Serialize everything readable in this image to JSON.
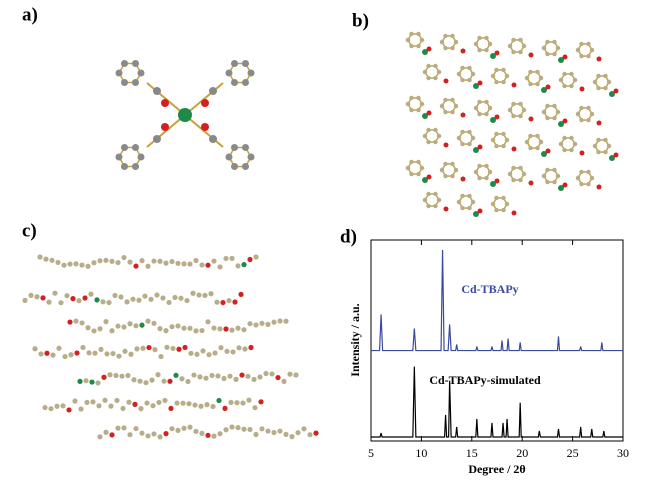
{
  "panels": {
    "a": "a)",
    "b": "b)",
    "c": "c)",
    "d": "d)"
  },
  "chart_data": {
    "type": "line",
    "xlabel": "Degree / 2θ",
    "ylabel": "Intensity / a.u.",
    "xlim": [
      5,
      30
    ],
    "xticks": [
      5,
      10,
      15,
      20,
      25,
      30
    ],
    "ylim": [
      0,
      100
    ],
    "series": [
      {
        "name": "Cd-TBAPy",
        "color": "#3a4a9c",
        "x": [
          5,
          5.85,
          6.0,
          6.15,
          9.15,
          9.3,
          9.45,
          11.95,
          12.1,
          12.25,
          12.65,
          12.8,
          12.95,
          13.4,
          13.5,
          13.6,
          15.4,
          15.5,
          15.6,
          16.9,
          17,
          17.1,
          17.9,
          18,
          18.1,
          18.5,
          18.6,
          18.7,
          19.7,
          19.8,
          19.9,
          23.5,
          23.6,
          23.7,
          25.7,
          25.8,
          25.9,
          27.8,
          27.9,
          28.0,
          30
        ],
        "values": [
          45,
          45,
          63,
          45,
          45,
          56,
          45,
          45,
          95,
          45,
          45,
          58,
          45,
          45,
          48,
          45,
          45,
          47,
          45,
          45,
          47,
          45,
          45,
          50,
          45,
          45,
          51,
          45,
          45,
          49,
          45,
          45,
          52,
          45,
          45,
          47,
          45,
          45,
          49,
          45,
          45
        ]
      },
      {
        "name": "Cd-TBAPy-simulated",
        "color": "#000000",
        "x": [
          5,
          5.9,
          6.0,
          6.1,
          9.15,
          9.3,
          9.45,
          12.3,
          12.4,
          12.5,
          12.7,
          12.8,
          12.95,
          13.4,
          13.5,
          13.6,
          15.4,
          15.5,
          15.6,
          16.9,
          17,
          17.1,
          18.0,
          18.1,
          18.2,
          18.4,
          18.5,
          18.6,
          19.7,
          19.8,
          19.9,
          21.6,
          21.7,
          21.8,
          23.5,
          23.6,
          23.7,
          25.7,
          25.8,
          25.9,
          26.8,
          26.9,
          27.0,
          28.0,
          28.1,
          28.2,
          30
        ],
        "values": [
          2,
          2,
          4,
          2,
          2,
          37,
          2,
          2,
          13,
          2,
          2,
          30,
          2,
          2,
          7,
          2,
          2,
          11,
          2,
          2,
          9,
          2,
          2,
          9,
          2,
          2,
          11,
          2,
          2,
          19,
          2,
          2,
          5,
          2,
          2,
          6,
          2,
          2,
          7,
          2,
          2,
          6,
          2,
          2,
          5,
          2,
          2
        ]
      }
    ]
  }
}
